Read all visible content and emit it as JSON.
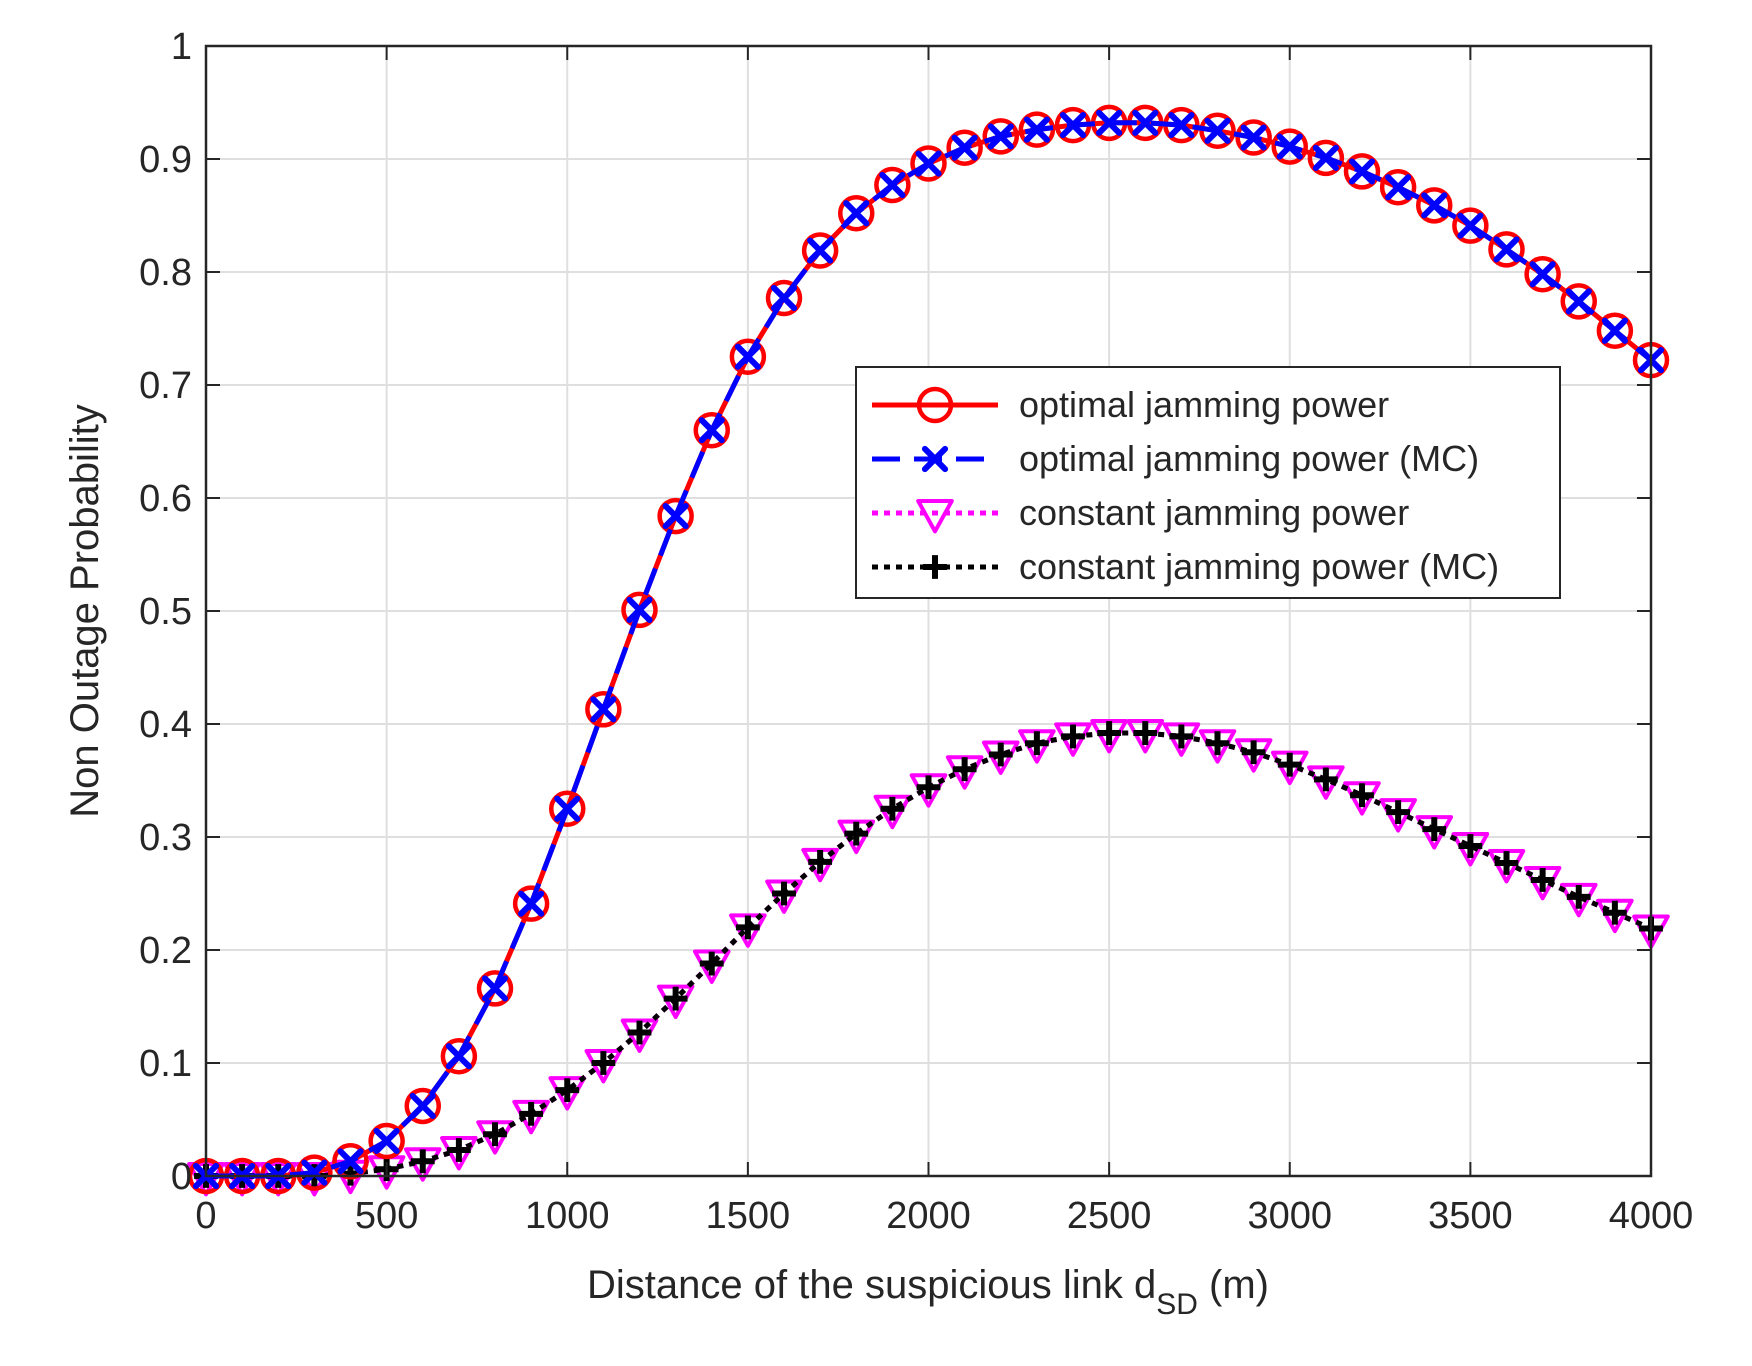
{
  "chart_data": {
    "type": "line",
    "title": "",
    "xlabel": "Distance of the suspicious link d",
    "xlabel_subscript": "SD",
    "xlabel_suffix": " (m)",
    "ylabel": "Non Outage Probability",
    "xlim": [
      0,
      4000
    ],
    "ylim": [
      0,
      1
    ],
    "xticks": [
      0,
      500,
      1000,
      1500,
      2000,
      2500,
      3000,
      3500,
      4000
    ],
    "yticks": [
      0,
      0.1,
      0.2,
      0.3,
      0.4,
      0.5,
      0.6,
      0.7,
      0.8,
      0.9,
      1
    ],
    "xtick_labels": [
      "0",
      "500",
      "1000",
      "1500",
      "2000",
      "2500",
      "3000",
      "3500",
      "4000"
    ],
    "ytick_labels": [
      "0",
      "0.1",
      "0.2",
      "0.3",
      "0.4",
      "0.5",
      "0.6",
      "0.7",
      "0.8",
      "0.9",
      "1"
    ],
    "grid": true,
    "legend_position": "center-right",
    "x": [
      0,
      100,
      200,
      300,
      400,
      500,
      600,
      700,
      800,
      900,
      1000,
      1100,
      1200,
      1300,
      1400,
      1500,
      1600,
      1700,
      1800,
      1900,
      2000,
      2100,
      2200,
      2300,
      2400,
      2500,
      2600,
      2700,
      2800,
      2900,
      3000,
      3100,
      3200,
      3300,
      3400,
      3500,
      3600,
      3700,
      3800,
      3900,
      4000
    ],
    "series": [
      {
        "name": "optimal jamming power",
        "color": "#ff0000",
        "line": "solid",
        "marker": "circle",
        "values": [
          0,
          0,
          0,
          0.003,
          0.013,
          0.031,
          0.062,
          0.106,
          0.166,
          0.241,
          0.325,
          0.413,
          0.501,
          0.584,
          0.66,
          0.725,
          0.777,
          0.819,
          0.852,
          0.877,
          0.896,
          0.91,
          0.92,
          0.926,
          0.93,
          0.932,
          0.932,
          0.93,
          0.925,
          0.919,
          0.911,
          0.901,
          0.889,
          0.875,
          0.859,
          0.841,
          0.82,
          0.798,
          0.774,
          0.748,
          0.722
        ]
      },
      {
        "name": "optimal jamming power (MC)",
        "color": "#0000ff",
        "line": "dashed",
        "marker": "x",
        "values": [
          0,
          0,
          0,
          0.003,
          0.013,
          0.031,
          0.062,
          0.106,
          0.166,
          0.241,
          0.325,
          0.413,
          0.501,
          0.584,
          0.66,
          0.725,
          0.777,
          0.819,
          0.852,
          0.877,
          0.896,
          0.91,
          0.92,
          0.926,
          0.93,
          0.932,
          0.932,
          0.93,
          0.925,
          0.919,
          0.911,
          0.901,
          0.889,
          0.875,
          0.859,
          0.841,
          0.82,
          0.798,
          0.774,
          0.748,
          0.722
        ]
      },
      {
        "name": "constant jamming power",
        "color": "#ff00ff",
        "line": "dotted",
        "marker": "triangle-down",
        "values": [
          0,
          0,
          0,
          0,
          0.002,
          0.006,
          0.013,
          0.023,
          0.037,
          0.055,
          0.076,
          0.1,
          0.127,
          0.157,
          0.188,
          0.22,
          0.25,
          0.278,
          0.303,
          0.325,
          0.344,
          0.36,
          0.373,
          0.383,
          0.389,
          0.392,
          0.392,
          0.389,
          0.383,
          0.375,
          0.364,
          0.351,
          0.337,
          0.322,
          0.307,
          0.292,
          0.277,
          0.262,
          0.247,
          0.233,
          0.219
        ]
      },
      {
        "name": "constant jamming power (MC)",
        "color": "#000000",
        "line": "dotted",
        "marker": "plus",
        "values": [
          0,
          0,
          0,
          0,
          0.002,
          0.006,
          0.013,
          0.023,
          0.037,
          0.055,
          0.076,
          0.1,
          0.127,
          0.157,
          0.188,
          0.22,
          0.25,
          0.278,
          0.303,
          0.325,
          0.344,
          0.36,
          0.373,
          0.383,
          0.389,
          0.392,
          0.392,
          0.389,
          0.383,
          0.375,
          0.364,
          0.351,
          0.337,
          0.322,
          0.307,
          0.292,
          0.277,
          0.262,
          0.247,
          0.233,
          0.219
        ]
      }
    ]
  }
}
